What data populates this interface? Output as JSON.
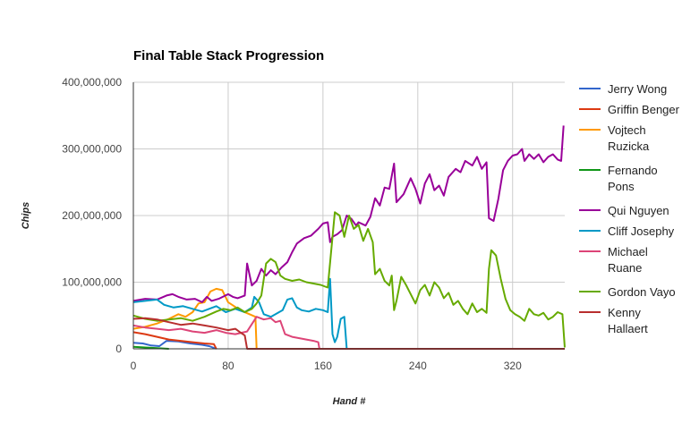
{
  "chart_data": {
    "type": "line",
    "title": "Final Table Stack Progression",
    "xlabel": "Hand #",
    "ylabel": "Chips",
    "xlim": [
      0,
      364
    ],
    "ylim": [
      0,
      400000000
    ],
    "x_ticks": [
      0,
      80,
      160,
      240,
      320
    ],
    "x_tick_labels": [
      "0",
      "80",
      "160",
      "240",
      "320"
    ],
    "y_ticks": [
      0,
      100000000,
      200000000,
      300000000,
      400000000
    ],
    "y_tick_labels": [
      "0",
      "100,000,000",
      "200,000,000",
      "300,000,000",
      "400,000,000"
    ],
    "grid": true,
    "legend_position": "right",
    "series": [
      {
        "name": "Jerry Wong",
        "legend_lines": [
          "Jerry Wong"
        ],
        "color": "#3366cc",
        "points": [
          [
            0,
            9000000
          ],
          [
            8,
            8000000
          ],
          [
            15,
            5000000
          ],
          [
            22,
            4000000
          ],
          [
            28,
            12000000
          ],
          [
            38,
            11000000
          ],
          [
            48,
            8000000
          ],
          [
            58,
            6000000
          ],
          [
            64,
            4000000
          ],
          [
            70,
            0
          ]
        ]
      },
      {
        "name": "Griffin Benger",
        "legend_lines": [
          "Griffin Benger"
        ],
        "color": "#dc3912",
        "points": [
          [
            0,
            25000000
          ],
          [
            10,
            22000000
          ],
          [
            20,
            18000000
          ],
          [
            30,
            14000000
          ],
          [
            40,
            12000000
          ],
          [
            50,
            10000000
          ],
          [
            60,
            8000000
          ],
          [
            68,
            7000000
          ],
          [
            70,
            0
          ]
        ]
      },
      {
        "name": "Vojtech Ruzicka",
        "legend_lines": [
          "Vojtech",
          "Ruzicka"
        ],
        "color": "#ff9900",
        "points": [
          [
            0,
            30000000
          ],
          [
            10,
            33000000
          ],
          [
            20,
            38000000
          ],
          [
            30,
            45000000
          ],
          [
            38,
            52000000
          ],
          [
            44,
            48000000
          ],
          [
            50,
            55000000
          ],
          [
            55,
            68000000
          ],
          [
            60,
            70000000
          ],
          [
            65,
            86000000
          ],
          [
            70,
            90000000
          ],
          [
            75,
            88000000
          ],
          [
            80,
            70000000
          ],
          [
            85,
            64000000
          ],
          [
            90,
            58000000
          ],
          [
            98,
            52000000
          ],
          [
            103,
            48000000
          ],
          [
            104,
            0
          ]
        ]
      },
      {
        "name": "Fernando Pons",
        "legend_lines": [
          "Fernando",
          "Pons"
        ],
        "color": "#109618",
        "points": [
          [
            0,
            3000000
          ],
          [
            10,
            2000000
          ],
          [
            20,
            1000000
          ],
          [
            30,
            0
          ]
        ]
      },
      {
        "name": "Qui Nguyen",
        "legend_lines": [
          "Qui Nguyen"
        ],
        "color": "#990099",
        "points": [
          [
            0,
            72000000
          ],
          [
            10,
            75000000
          ],
          [
            20,
            74000000
          ],
          [
            28,
            80000000
          ],
          [
            33,
            82000000
          ],
          [
            38,
            78000000
          ],
          [
            45,
            74000000
          ],
          [
            52,
            75000000
          ],
          [
            58,
            70000000
          ],
          [
            62,
            78000000
          ],
          [
            66,
            72000000
          ],
          [
            72,
            75000000
          ],
          [
            80,
            82000000
          ],
          [
            84,
            78000000
          ],
          [
            88,
            76000000
          ],
          [
            94,
            80000000
          ],
          [
            96,
            128000000
          ],
          [
            100,
            95000000
          ],
          [
            104,
            102000000
          ],
          [
            108,
            120000000
          ],
          [
            112,
            110000000
          ],
          [
            116,
            118000000
          ],
          [
            120,
            112000000
          ],
          [
            125,
            122000000
          ],
          [
            130,
            130000000
          ],
          [
            134,
            145000000
          ],
          [
            138,
            158000000
          ],
          [
            144,
            166000000
          ],
          [
            150,
            170000000
          ],
          [
            156,
            180000000
          ],
          [
            160,
            188000000
          ],
          [
            164,
            190000000
          ],
          [
            166,
            160000000
          ],
          [
            168,
            168000000
          ],
          [
            172,
            172000000
          ],
          [
            176,
            178000000
          ],
          [
            180,
            200000000
          ],
          [
            184,
            195000000
          ],
          [
            188,
            185000000
          ],
          [
            190,
            190000000
          ],
          [
            196,
            185000000
          ],
          [
            200,
            198000000
          ],
          [
            204,
            226000000
          ],
          [
            208,
            215000000
          ],
          [
            212,
            242000000
          ],
          [
            216,
            240000000
          ],
          [
            220,
            278000000
          ],
          [
            222,
            220000000
          ],
          [
            228,
            232000000
          ],
          [
            234,
            256000000
          ],
          [
            238,
            240000000
          ],
          [
            242,
            218000000
          ],
          [
            246,
            248000000
          ],
          [
            250,
            262000000
          ],
          [
            254,
            238000000
          ],
          [
            258,
            245000000
          ],
          [
            262,
            230000000
          ],
          [
            266,
            258000000
          ],
          [
            272,
            270000000
          ],
          [
            276,
            265000000
          ],
          [
            280,
            282000000
          ],
          [
            286,
            275000000
          ],
          [
            290,
            288000000
          ],
          [
            294,
            270000000
          ],
          [
            298,
            280000000
          ],
          [
            300,
            196000000
          ],
          [
            304,
            192000000
          ],
          [
            308,
            225000000
          ],
          [
            312,
            268000000
          ],
          [
            316,
            282000000
          ],
          [
            320,
            290000000
          ],
          [
            324,
            292000000
          ],
          [
            328,
            300000000
          ],
          [
            330,
            282000000
          ],
          [
            334,
            292000000
          ],
          [
            338,
            285000000
          ],
          [
            342,
            292000000
          ],
          [
            346,
            280000000
          ],
          [
            350,
            288000000
          ],
          [
            354,
            292000000
          ],
          [
            358,
            284000000
          ],
          [
            361,
            282000000
          ],
          [
            363,
            335000000
          ]
        ]
      },
      {
        "name": "Cliff Josephy",
        "legend_lines": [
          "Cliff Josephy"
        ],
        "color": "#0099c6",
        "points": [
          [
            0,
            70000000
          ],
          [
            10,
            72000000
          ],
          [
            20,
            74000000
          ],
          [
            26,
            66000000
          ],
          [
            34,
            62000000
          ],
          [
            42,
            64000000
          ],
          [
            50,
            60000000
          ],
          [
            58,
            56000000
          ],
          [
            64,
            60000000
          ],
          [
            70,
            64000000
          ],
          [
            78,
            55000000
          ],
          [
            86,
            60000000
          ],
          [
            94,
            55000000
          ],
          [
            100,
            62000000
          ],
          [
            102,
            78000000
          ],
          [
            106,
            70000000
          ],
          [
            110,
            52000000
          ],
          [
            116,
            48000000
          ],
          [
            120,
            52000000
          ],
          [
            126,
            58000000
          ],
          [
            130,
            74000000
          ],
          [
            134,
            76000000
          ],
          [
            138,
            62000000
          ],
          [
            142,
            58000000
          ],
          [
            148,
            56000000
          ],
          [
            154,
            60000000
          ],
          [
            160,
            58000000
          ],
          [
            164,
            55000000
          ],
          [
            166,
            105000000
          ],
          [
            168,
            22000000
          ],
          [
            170,
            10000000
          ],
          [
            172,
            18000000
          ],
          [
            175,
            45000000
          ],
          [
            178,
            48000000
          ],
          [
            180,
            0
          ]
        ]
      },
      {
        "name": "Michael Ruane",
        "legend_lines": [
          "Michael",
          "Ruane"
        ],
        "color": "#dd4477",
        "points": [
          [
            0,
            35000000
          ],
          [
            10,
            32000000
          ],
          [
            20,
            30000000
          ],
          [
            30,
            28000000
          ],
          [
            40,
            30000000
          ],
          [
            50,
            26000000
          ],
          [
            60,
            24000000
          ],
          [
            70,
            28000000
          ],
          [
            78,
            24000000
          ],
          [
            86,
            22000000
          ],
          [
            96,
            26000000
          ],
          [
            104,
            48000000
          ],
          [
            110,
            44000000
          ],
          [
            116,
            46000000
          ],
          [
            120,
            40000000
          ],
          [
            124,
            42000000
          ],
          [
            128,
            22000000
          ],
          [
            134,
            18000000
          ],
          [
            140,
            16000000
          ],
          [
            146,
            14000000
          ],
          [
            152,
            12000000
          ],
          [
            156,
            10000000
          ],
          [
            157,
            0
          ]
        ]
      },
      {
        "name": "Gordon Vayo",
        "legend_lines": [
          "Gordon Vayo"
        ],
        "color": "#66aa00",
        "points": [
          [
            0,
            50000000
          ],
          [
            10,
            45000000
          ],
          [
            20,
            42000000
          ],
          [
            30,
            44000000
          ],
          [
            40,
            46000000
          ],
          [
            50,
            42000000
          ],
          [
            60,
            48000000
          ],
          [
            70,
            56000000
          ],
          [
            76,
            60000000
          ],
          [
            82,
            58000000
          ],
          [
            88,
            62000000
          ],
          [
            94,
            55000000
          ],
          [
            100,
            60000000
          ],
          [
            104,
            68000000
          ],
          [
            108,
            80000000
          ],
          [
            112,
            128000000
          ],
          [
            116,
            135000000
          ],
          [
            120,
            130000000
          ],
          [
            124,
            110000000
          ],
          [
            128,
            105000000
          ],
          [
            134,
            102000000
          ],
          [
            140,
            104000000
          ],
          [
            146,
            100000000
          ],
          [
            152,
            98000000
          ],
          [
            158,
            96000000
          ],
          [
            164,
            92000000
          ],
          [
            170,
            205000000
          ],
          [
            174,
            200000000
          ],
          [
            178,
            168000000
          ],
          [
            182,
            200000000
          ],
          [
            186,
            180000000
          ],
          [
            190,
            186000000
          ],
          [
            194,
            162000000
          ],
          [
            198,
            180000000
          ],
          [
            202,
            160000000
          ],
          [
            204,
            112000000
          ],
          [
            208,
            120000000
          ],
          [
            212,
            102000000
          ],
          [
            216,
            95000000
          ],
          [
            218,
            110000000
          ],
          [
            220,
            58000000
          ],
          [
            222,
            72000000
          ],
          [
            226,
            108000000
          ],
          [
            230,
            96000000
          ],
          [
            234,
            82000000
          ],
          [
            238,
            68000000
          ],
          [
            242,
            88000000
          ],
          [
            246,
            96000000
          ],
          [
            250,
            80000000
          ],
          [
            254,
            100000000
          ],
          [
            258,
            92000000
          ],
          [
            262,
            76000000
          ],
          [
            266,
            84000000
          ],
          [
            270,
            66000000
          ],
          [
            274,
            72000000
          ],
          [
            278,
            60000000
          ],
          [
            282,
            52000000
          ],
          [
            286,
            68000000
          ],
          [
            290,
            55000000
          ],
          [
            294,
            60000000
          ],
          [
            298,
            54000000
          ],
          [
            300,
            120000000
          ],
          [
            302,
            148000000
          ],
          [
            306,
            140000000
          ],
          [
            310,
            105000000
          ],
          [
            314,
            75000000
          ],
          [
            318,
            58000000
          ],
          [
            322,
            52000000
          ],
          [
            326,
            48000000
          ],
          [
            330,
            42000000
          ],
          [
            334,
            60000000
          ],
          [
            338,
            52000000
          ],
          [
            342,
            50000000
          ],
          [
            346,
            54000000
          ],
          [
            350,
            44000000
          ],
          [
            354,
            48000000
          ],
          [
            358,
            55000000
          ],
          [
            362,
            52000000
          ],
          [
            364,
            2000000
          ]
        ]
      },
      {
        "name": "Kenny Hallaert",
        "legend_lines": [
          "Kenny",
          "Hallaert"
        ],
        "color": "#b82e2e",
        "points": [
          [
            0,
            45000000
          ],
          [
            10,
            46000000
          ],
          [
            20,
            44000000
          ],
          [
            30,
            40000000
          ],
          [
            40,
            36000000
          ],
          [
            50,
            38000000
          ],
          [
            60,
            35000000
          ],
          [
            70,
            32000000
          ],
          [
            80,
            28000000
          ],
          [
            86,
            30000000
          ],
          [
            90,
            25000000
          ],
          [
            94,
            20000000
          ],
          [
            96,
            0
          ],
          [
            364,
            0
          ]
        ]
      }
    ]
  }
}
